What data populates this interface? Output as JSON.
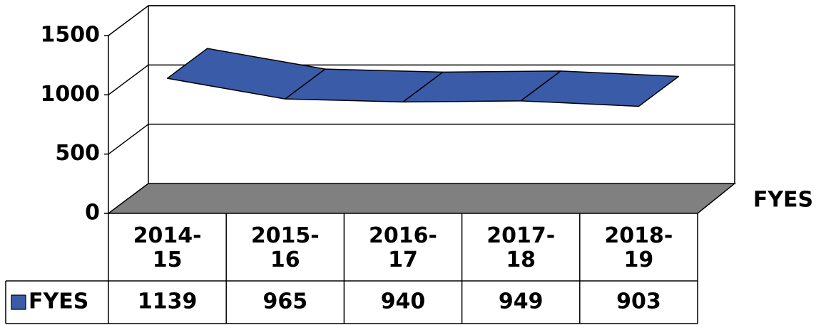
{
  "chart_data": {
    "type": "line3d",
    "categories": [
      "2014-15",
      "2015-16",
      "2016-17",
      "2017-18",
      "2018-19"
    ],
    "series": [
      {
        "name": "FYES",
        "color": "#3a5ba8",
        "values": [
          1139,
          965,
          940,
          949,
          903
        ]
      }
    ],
    "ylim": [
      0,
      1500
    ],
    "yticks": [
      0,
      500,
      1000,
      1500
    ],
    "grid": true,
    "legend": "right"
  }
}
